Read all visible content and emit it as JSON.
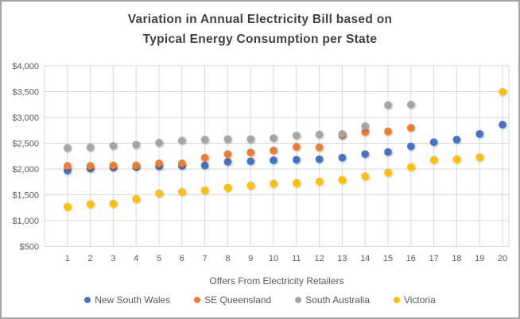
{
  "chart": {
    "title_line1": "Variation in Annual Electricity Bill based on",
    "title_line2": "Typical Energy Consumption per State",
    "x_axis_title": "Offers From Electricity Retailers"
  },
  "chart_data": {
    "type": "scatter",
    "title": "Variation in Annual Electricity Bill based on Typical Energy Consumption per State",
    "xlabel": "Offers From Electricity Retailers",
    "ylabel": "",
    "x": [
      1,
      2,
      3,
      4,
      5,
      6,
      7,
      8,
      9,
      10,
      11,
      12,
      13,
      14,
      15,
      16,
      17,
      18,
      19,
      20
    ],
    "xlim": [
      0,
      20.3
    ],
    "ylim": [
      500,
      4000
    ],
    "y_ticks": [
      500,
      1000,
      1500,
      2000,
      2500,
      3000,
      3500,
      4000
    ],
    "y_tick_labels": [
      "$500",
      "$1,000",
      "$1,500",
      "$2,000",
      "$2,500",
      "$3,000",
      "$3,500",
      "$4,000"
    ],
    "grid": true,
    "legend_position": "bottom",
    "marker": "circle",
    "series": [
      {
        "name": "New South Wales",
        "color": "#4472C4",
        "values": [
          1970,
          2010,
          2030,
          2040,
          2050,
          2060,
          2070,
          2140,
          2150,
          2170,
          2180,
          2190,
          2220,
          2290,
          2330,
          2440,
          2520,
          2570,
          2680,
          2860
        ]
      },
      {
        "name": "SE Queensland",
        "color": "#ED7D31",
        "values": [
          2060,
          2060,
          2070,
          2070,
          2110,
          2110,
          2220,
          2290,
          2320,
          2360,
          2430,
          2420,
          2650,
          2720,
          2730,
          2800,
          null,
          null,
          null,
          null
        ]
      },
      {
        "name": "South Australia",
        "color": "#A5A5A5",
        "values": [
          2410,
          2420,
          2450,
          2470,
          2510,
          2550,
          2570,
          2580,
          2580,
          2600,
          2650,
          2670,
          2680,
          2830,
          3240,
          3250,
          null,
          null,
          null,
          null
        ]
      },
      {
        "name": "Victoria",
        "color": "#FFC000",
        "values": [
          1270,
          1320,
          1330,
          1420,
          1530,
          1560,
          1590,
          1640,
          1680,
          1720,
          1730,
          1760,
          1790,
          1860,
          1930,
          2040,
          2180,
          2190,
          2230,
          3500
        ]
      }
    ]
  },
  "colors": {
    "gridline": "#D9D9D9",
    "axis_text": "#595959",
    "title_text": "#404040",
    "frame_border": "#A6A6A6",
    "background": "#FFFFFF"
  }
}
